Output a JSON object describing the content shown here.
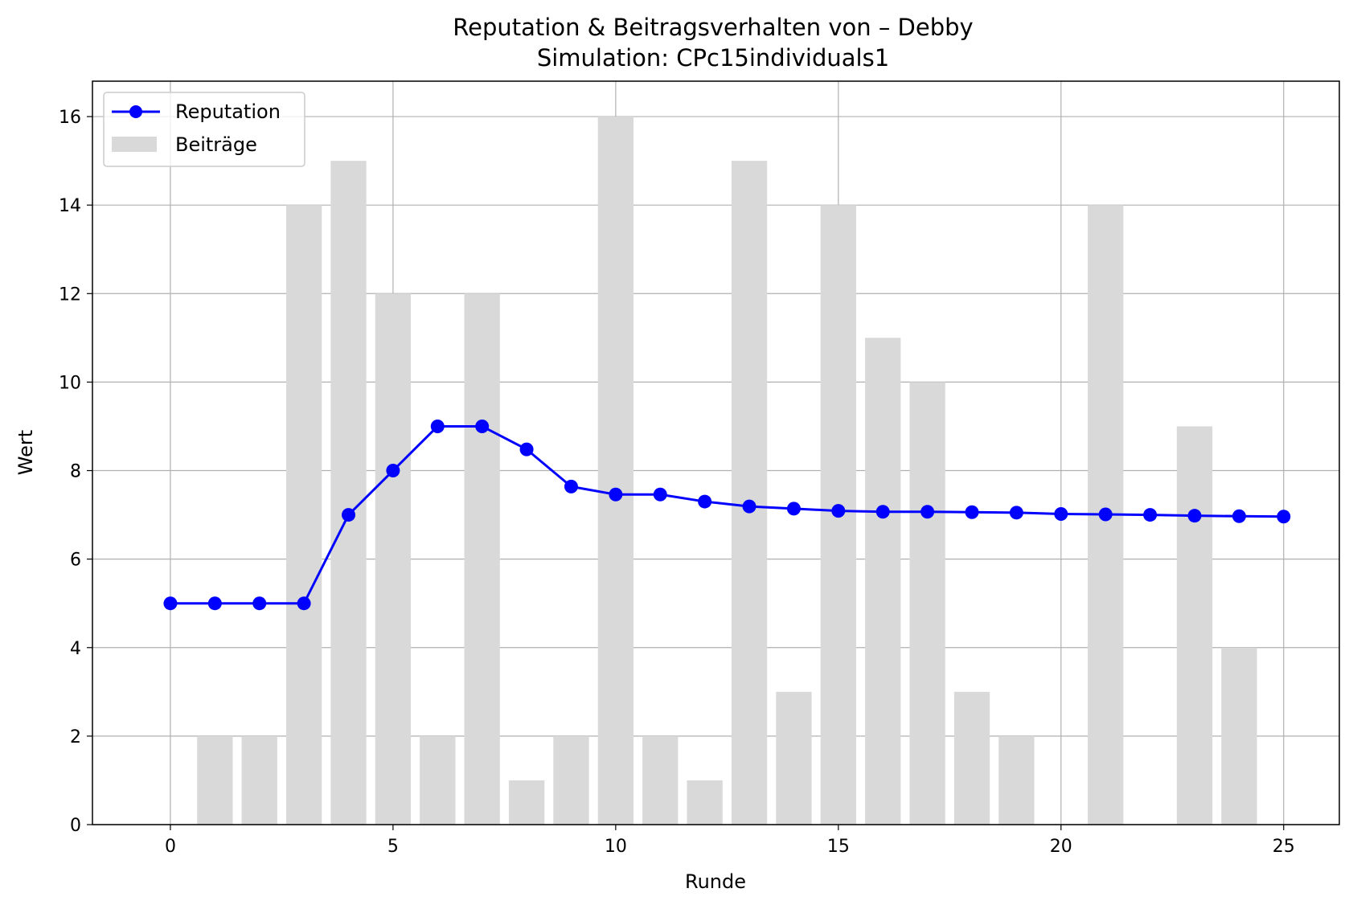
{
  "chart_data": {
    "type": "bar+line",
    "title": "Reputation & Beitragsverhalten von – Debby",
    "subtitle": "Simulation: CPc15individuals1",
    "xlabel": "Runde",
    "ylabel": "Wert",
    "xlim": [
      -1.75,
      26.25
    ],
    "ylim": [
      0,
      16.8
    ],
    "xticks": [
      0,
      5,
      10,
      15,
      20,
      25
    ],
    "yticks": [
      0,
      2,
      4,
      6,
      8,
      10,
      12,
      14,
      16
    ],
    "grid": true,
    "legend_position": "top-left",
    "x": [
      0,
      1,
      2,
      3,
      4,
      5,
      6,
      7,
      8,
      9,
      10,
      11,
      12,
      13,
      14,
      15,
      16,
      17,
      18,
      19,
      20,
      21,
      22,
      23,
      24,
      25
    ],
    "series": [
      {
        "name": "Reputation",
        "kind": "line",
        "color": "#0000ff",
        "values": [
          5,
          5,
          5,
          5,
          7,
          8,
          9,
          9,
          8.48,
          7.64,
          7.46,
          7.46,
          7.3,
          7.19,
          7.14,
          7.09,
          7.07,
          7.07,
          7.06,
          7.05,
          7.02,
          7.01,
          7.0,
          6.98,
          6.97,
          6.96
        ]
      },
      {
        "name": "Beiträge",
        "kind": "bar",
        "color": "#d9d9d9",
        "values": [
          0,
          2,
          2,
          14,
          15,
          12,
          2,
          12,
          1,
          2,
          16,
          2,
          1,
          15,
          3,
          14,
          11,
          10,
          3,
          2,
          0,
          14,
          0,
          9,
          4,
          0
        ]
      }
    ]
  }
}
